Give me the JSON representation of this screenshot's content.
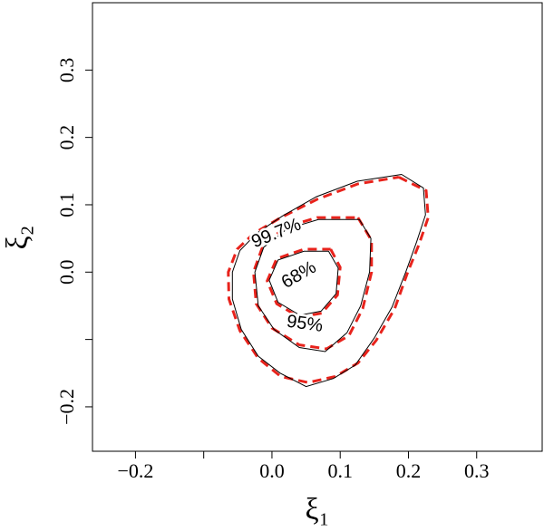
{
  "chart_data": {
    "type": "contour",
    "xlabel": "ξ₁",
    "ylabel": "ξ₂",
    "xlim": [
      -0.263,
      0.396
    ],
    "ylim": [
      -0.266,
      0.4
    ],
    "xticks": [
      {
        "value": -0.2,
        "label": "−0.2"
      },
      {
        "value": -0.1,
        "label": null
      },
      {
        "value": 0.0,
        "label": "0.0"
      },
      0.1,
      0.2,
      0.3
    ],
    "yticks": [
      {
        "value": -0.2,
        "label": "−0.2"
      },
      {
        "value": -0.1,
        "label": null
      },
      {
        "value": 0.0,
        "label": "0.0"
      },
      0.1,
      0.2,
      0.3
    ],
    "contours": [
      {
        "label": "99.7%",
        "color": "#e8231c",
        "line_style": "dashed",
        "x": [
          0.186,
          0.226,
          0.229,
          0.215,
          0.199,
          0.18,
          0.153,
          0.126,
          0.093,
          0.053,
          0.013,
          -0.02,
          -0.047,
          -0.063,
          -0.064,
          -0.051,
          -0.027,
          0.013,
          0.066,
          0.126,
          0.186
        ],
        "y": [
          0.141,
          0.121,
          0.081,
          0.04,
          0.0,
          -0.054,
          -0.101,
          -0.135,
          -0.155,
          -0.164,
          -0.155,
          -0.128,
          -0.087,
          -0.04,
          0.0,
          0.034,
          0.057,
          0.081,
          0.108,
          0.131,
          0.141
        ]
      },
      {
        "color": "#000000",
        "line_style": "solid",
        "x": [
          0.19,
          0.222,
          0.225,
          0.212,
          0.196,
          0.176,
          0.15,
          0.122,
          0.09,
          0.05,
          0.012,
          -0.02,
          -0.045,
          -0.058,
          -0.058,
          -0.047,
          -0.022,
          0.015,
          0.065,
          0.125,
          0.19
        ],
        "y": [
          0.145,
          0.125,
          0.085,
          0.045,
          0.0,
          -0.052,
          -0.098,
          -0.138,
          -0.158,
          -0.17,
          -0.15,
          -0.125,
          -0.085,
          -0.04,
          0.0,
          0.032,
          0.058,
          0.083,
          0.112,
          0.135,
          0.145
        ]
      },
      {
        "label": "95%",
        "color": "#e8231c",
        "line_style": "dashed",
        "x": [
          0.126,
          0.146,
          0.146,
          0.133,
          0.113,
          0.08,
          0.04,
          0.0,
          -0.023,
          -0.027,
          -0.013,
          0.02,
          0.066,
          0.126
        ],
        "y": [
          0.081,
          0.047,
          0.0,
          -0.054,
          -0.094,
          -0.114,
          -0.108,
          -0.083,
          -0.047,
          0.0,
          0.04,
          0.067,
          0.081,
          0.081
        ]
      },
      {
        "color": "#000000",
        "line_style": "solid",
        "x": [
          0.128,
          0.145,
          0.143,
          0.13,
          0.11,
          0.078,
          0.04,
          0.003,
          -0.02,
          -0.025,
          -0.012,
          0.022,
          0.068,
          0.128
        ],
        "y": [
          0.078,
          0.05,
          0.0,
          -0.05,
          -0.09,
          -0.118,
          -0.112,
          -0.085,
          -0.05,
          0.0,
          0.037,
          0.064,
          0.078,
          0.078
        ]
      },
      {
        "label": "68%",
        "color": "#e8231c",
        "line_style": "dashed",
        "x": [
          0.086,
          0.1,
          0.096,
          0.073,
          0.04,
          0.007,
          -0.007,
          0.007,
          0.047,
          0.086
        ],
        "y": [
          0.034,
          0.007,
          -0.034,
          -0.061,
          -0.067,
          -0.047,
          -0.013,
          0.02,
          0.034,
          0.034
        ]
      },
      {
        "color": "#000000",
        "line_style": "solid",
        "x": [
          0.083,
          0.097,
          0.094,
          0.072,
          0.041,
          0.009,
          -0.004,
          0.009,
          0.047,
          0.083
        ],
        "y": [
          0.031,
          0.006,
          -0.032,
          -0.058,
          -0.064,
          -0.045,
          -0.012,
          0.018,
          0.031,
          0.031
        ]
      }
    ]
  }
}
